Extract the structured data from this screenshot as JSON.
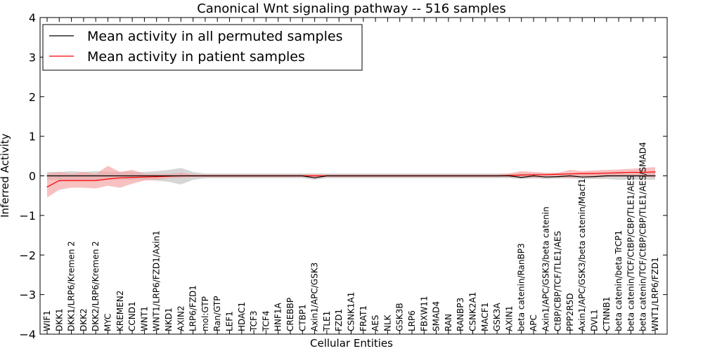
{
  "chart_data": {
    "type": "line",
    "title": "Canonical Wnt signaling pathway -- 516 samples",
    "xlabel": "Cellular Entities",
    "ylabel": "Inferred Activity",
    "ylim": [
      -4,
      4
    ],
    "yticks": [
      -4,
      -3,
      -2,
      -1,
      0,
      1,
      2,
      3,
      4
    ],
    "ytick_labels": [
      "−4",
      "−3",
      "−2",
      "−1",
      "0",
      "1",
      "2",
      "3",
      "4"
    ],
    "grid": false,
    "legend_position": "top-left",
    "categories": [
      "WIF1",
      "DKK1",
      "DKK1/LRP6/Kremen 2",
      "DKK2",
      "DKK2/LRP6/Kremen 2",
      "MYC",
      "KREMEN2",
      "CCND1",
      "WNT1",
      "WNT1/LRP6/FZD1/Axin1",
      "NKD1",
      "AXIN2",
      "LRP6/FZD1",
      "mol:GTP",
      "Ran/GTP",
      "LEF1",
      "HDAC1",
      "TCF3",
      "TCF4",
      "HNF1A",
      "CREBBP",
      "CTBP1",
      "Axin1/APC/GSK3",
      "TLE1",
      "FZD1",
      "CSNK1A1",
      "FRAT1",
      "AES",
      "NLK",
      "GSK3B",
      "LRP6",
      "FBXW11",
      "SMAD4",
      "RAN",
      "RANBP3",
      "CSNK2A1",
      "MACF1",
      "GSK3A",
      "AXIN1",
      "beta catenin/RanBP3",
      "APC",
      "Axin1/APC/GSK3/beta catenin",
      "CtBP/CBP/TCF/TLE1/AES",
      "PPP2R5D",
      "Axin1/APC/GSK3/beta catenin/Macf1",
      "DVL1",
      "CTNNB1",
      "beta catenin/beta TrCP1",
      "beta catenin/TCF/CtBP/CBP/TLE1/AES",
      "beta catenin/TCF/CtBP/CBP/TLE1/AES/SMAD4",
      "WNT1/LRP6/FZD1"
    ],
    "series": [
      {
        "name": "Mean activity in all permuted samples",
        "color": "#000000",
        "band_color": "#c8c8c8",
        "values": [
          0,
          0,
          0,
          0,
          0,
          0,
          0,
          0,
          0,
          0,
          0,
          0,
          0,
          0,
          0,
          0,
          0,
          0,
          0,
          0,
          0,
          0,
          -0.05,
          0,
          0,
          0,
          0,
          0,
          0,
          0,
          0,
          0,
          0,
          0,
          0,
          0,
          0,
          0,
          0,
          -0.04,
          0,
          -0.03,
          -0.02,
          0,
          -0.03,
          -0.02,
          0,
          0,
          0,
          0,
          0
        ],
        "band_low": [
          -0.1,
          -0.1,
          -0.12,
          -0.1,
          -0.12,
          -0.1,
          -0.1,
          -0.1,
          -0.1,
          -0.12,
          -0.15,
          -0.22,
          -0.1,
          -0.06,
          -0.06,
          -0.06,
          -0.06,
          -0.06,
          -0.06,
          -0.06,
          -0.06,
          -0.06,
          -0.1,
          -0.06,
          -0.06,
          -0.06,
          -0.06,
          -0.06,
          -0.06,
          -0.06,
          -0.06,
          -0.06,
          -0.06,
          -0.06,
          -0.06,
          -0.06,
          -0.06,
          -0.06,
          -0.06,
          -0.08,
          -0.06,
          -0.08,
          -0.07,
          -0.06,
          -0.08,
          -0.08,
          -0.08,
          -0.1,
          -0.1,
          -0.1,
          -0.1
        ],
        "band_high": [
          0.1,
          0.1,
          0.12,
          0.1,
          0.12,
          0.1,
          0.1,
          0.1,
          0.1,
          0.12,
          0.15,
          0.2,
          0.1,
          0.06,
          0.06,
          0.06,
          0.06,
          0.06,
          0.06,
          0.06,
          0.06,
          0.06,
          0.06,
          0.06,
          0.06,
          0.06,
          0.06,
          0.06,
          0.06,
          0.06,
          0.06,
          0.06,
          0.06,
          0.06,
          0.06,
          0.06,
          0.06,
          0.06,
          0.06,
          0.06,
          0.06,
          0.06,
          0.06,
          0.06,
          0.06,
          0.06,
          0.08,
          0.1,
          0.1,
          0.1,
          0.1
        ]
      },
      {
        "name": "Mean activity in patient samples",
        "color": "#ff0000",
        "band_color": "#f5a0a0",
        "values": [
          -0.28,
          -0.12,
          -0.12,
          -0.12,
          -0.12,
          -0.08,
          -0.05,
          -0.04,
          -0.03,
          -0.02,
          -0.01,
          0,
          0,
          0,
          0,
          0,
          0,
          0,
          0,
          0,
          0,
          0,
          0,
          0,
          0,
          0,
          0,
          0,
          0,
          0,
          0,
          0,
          0,
          0,
          0,
          0,
          0,
          0,
          0.01,
          0.02,
          0.03,
          0.03,
          0.04,
          0.05,
          0.06,
          0.06,
          0.07,
          0.08,
          0.09,
          0.09,
          0.1
        ],
        "band_low": [
          -0.55,
          -0.35,
          -0.3,
          -0.3,
          -0.32,
          -0.25,
          -0.3,
          -0.2,
          -0.12,
          -0.1,
          -0.06,
          -0.05,
          -0.03,
          -0.03,
          -0.03,
          -0.03,
          -0.03,
          -0.03,
          -0.03,
          -0.03,
          -0.03,
          -0.03,
          -0.03,
          -0.03,
          -0.03,
          -0.03,
          -0.03,
          -0.03,
          -0.03,
          -0.03,
          -0.03,
          -0.03,
          -0.03,
          -0.03,
          -0.03,
          -0.03,
          -0.03,
          -0.03,
          -0.03,
          -0.05,
          -0.05,
          -0.04,
          -0.04,
          -0.06,
          -0.04,
          -0.04,
          -0.03,
          -0.02,
          -0.02,
          -0.02,
          -0.04
        ],
        "band_high": [
          0.05,
          0.1,
          0.05,
          0.1,
          0.05,
          0.25,
          0.1,
          0.15,
          0.05,
          0.05,
          0.05,
          0.08,
          0.04,
          0.04,
          0.04,
          0.04,
          0.04,
          0.04,
          0.04,
          0.04,
          0.04,
          0.04,
          0.04,
          0.04,
          0.04,
          0.04,
          0.04,
          0.04,
          0.04,
          0.04,
          0.04,
          0.04,
          0.04,
          0.04,
          0.04,
          0.04,
          0.04,
          0.04,
          0.06,
          0.12,
          0.1,
          0.08,
          0.08,
          0.15,
          0.12,
          0.14,
          0.15,
          0.16,
          0.18,
          0.2,
          0.22
        ]
      }
    ]
  }
}
